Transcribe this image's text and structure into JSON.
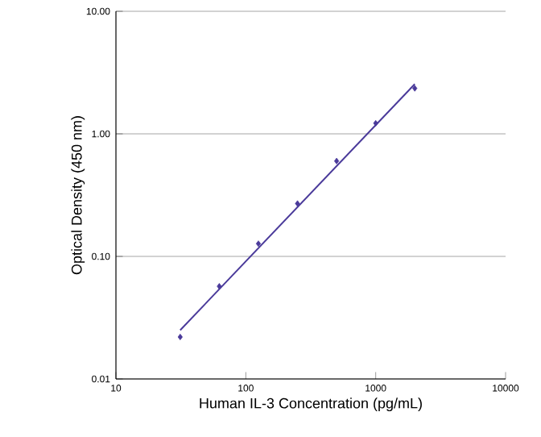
{
  "chart_data": {
    "type": "scatter",
    "xlabel": "Human IL-3 Concentration (pg/mL)",
    "ylabel": "Optical Density (450 nm)",
    "log": "xy",
    "grid": "y",
    "xlim": [
      10,
      10000
    ],
    "ylim": [
      0.01,
      10
    ],
    "xticks": [
      10,
      100,
      1000,
      10000
    ],
    "yticks": [
      {
        "value": 0.01,
        "label": "0.01"
      },
      {
        "value": 0.1,
        "label": "0.10"
      },
      {
        "value": 1,
        "label": "1.00"
      },
      {
        "value": 10,
        "label": "10.00"
      }
    ],
    "series": [
      {
        "color": "#4a3a9a",
        "marker": "diamond",
        "x": [
          31.25,
          62.5,
          125,
          250,
          500,
          1000,
          2000
        ],
        "values": [
          0.022,
          0.057,
          0.127,
          0.27,
          0.6,
          1.22,
          2.35
        ]
      },
      {
        "type": "line",
        "color": "#4a3a9a",
        "marker": "none",
        "line_style": "solid",
        "x": [
          31.25,
          2000
        ],
        "values": [
          0.025,
          2.55
        ]
      }
    ]
  }
}
